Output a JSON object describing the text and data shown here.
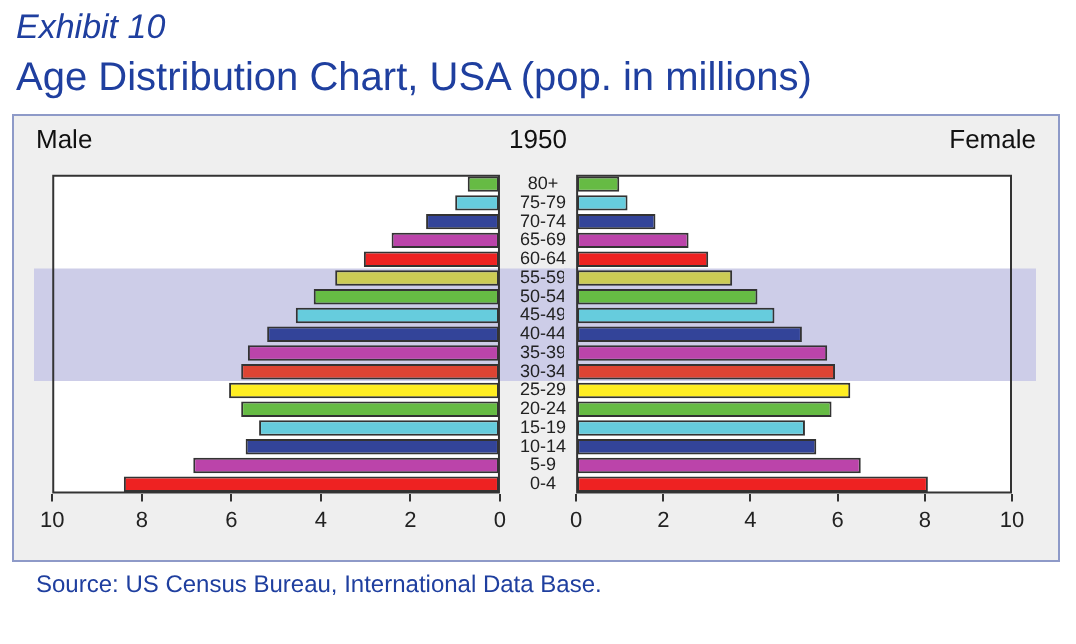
{
  "chart_data": [
    {
      "type": "other",
      "title": "Age Distribution Chart, USA (pop. in millions)",
      "annotations": [
        "Exhibit 10",
        "1950",
        "Source: US Census Bureau, International Data Base."
      ]
    },
    {
      "type": "bar",
      "orientation": "horizontal",
      "title": "Male",
      "categories": [
        "80+",
        "75-79",
        "70-74",
        "65-69",
        "60-64",
        "55-59",
        "50-54",
        "45-49",
        "40-44",
        "35-39",
        "30-34",
        "25-29",
        "20-24",
        "15-19",
        "10-14",
        "5-9",
        "0-4"
      ],
      "values": [
        0.72,
        1.0,
        1.65,
        2.42,
        3.04,
        3.68,
        4.16,
        4.56,
        5.2,
        5.63,
        5.78,
        6.05,
        5.78,
        5.38,
        5.68,
        6.85,
        8.4
      ],
      "colors": [
        "#66bb44",
        "#66ccdd",
        "#334499",
        "#bb44aa",
        "#ee2222",
        "#cccc55",
        "#66bb44",
        "#66ccdd",
        "#334499",
        "#bb44aa",
        "#dd4433",
        "#ffee22",
        "#66bb44",
        "#66ccdd",
        "#334499",
        "#bb44aa",
        "#ee2222"
      ],
      "xlim": [
        10,
        0
      ],
      "xticks": [
        10,
        8,
        6,
        4,
        2,
        0
      ],
      "grid": false,
      "bands": [
        {
          "axis": "y",
          "from": "30-34",
          "to": "55-59",
          "color": "#cdcde8"
        }
      ]
    },
    {
      "type": "bar",
      "orientation": "horizontal",
      "title": "Female",
      "categories": [
        "80+",
        "75-79",
        "70-74",
        "65-69",
        "60-64",
        "55-59",
        "50-54",
        "45-49",
        "40-44",
        "35-39",
        "30-34",
        "25-29",
        "20-24",
        "15-19",
        "10-14",
        "5-9",
        "0-4"
      ],
      "values": [
        0.99,
        1.18,
        1.82,
        2.58,
        3.03,
        3.58,
        4.16,
        4.55,
        5.18,
        5.76,
        5.94,
        6.29,
        5.86,
        5.25,
        5.51,
        6.53,
        8.07
      ],
      "colors": [
        "#66bb44",
        "#66ccdd",
        "#334499",
        "#bb44aa",
        "#ee2222",
        "#cccc55",
        "#66bb44",
        "#66ccdd",
        "#334499",
        "#bb44aa",
        "#dd4433",
        "#ffee22",
        "#66bb44",
        "#66ccdd",
        "#334499",
        "#bb44aa",
        "#ee2222"
      ],
      "xlim": [
        0,
        10
      ],
      "xticks": [
        0,
        2,
        4,
        6,
        8,
        10
      ],
      "grid": false,
      "tick_labels": "x",
      "bands": [
        {
          "axis": "y",
          "from": "30-34",
          "to": "55-59",
          "color": "#cdcde8"
        }
      ]
    }
  ]
}
